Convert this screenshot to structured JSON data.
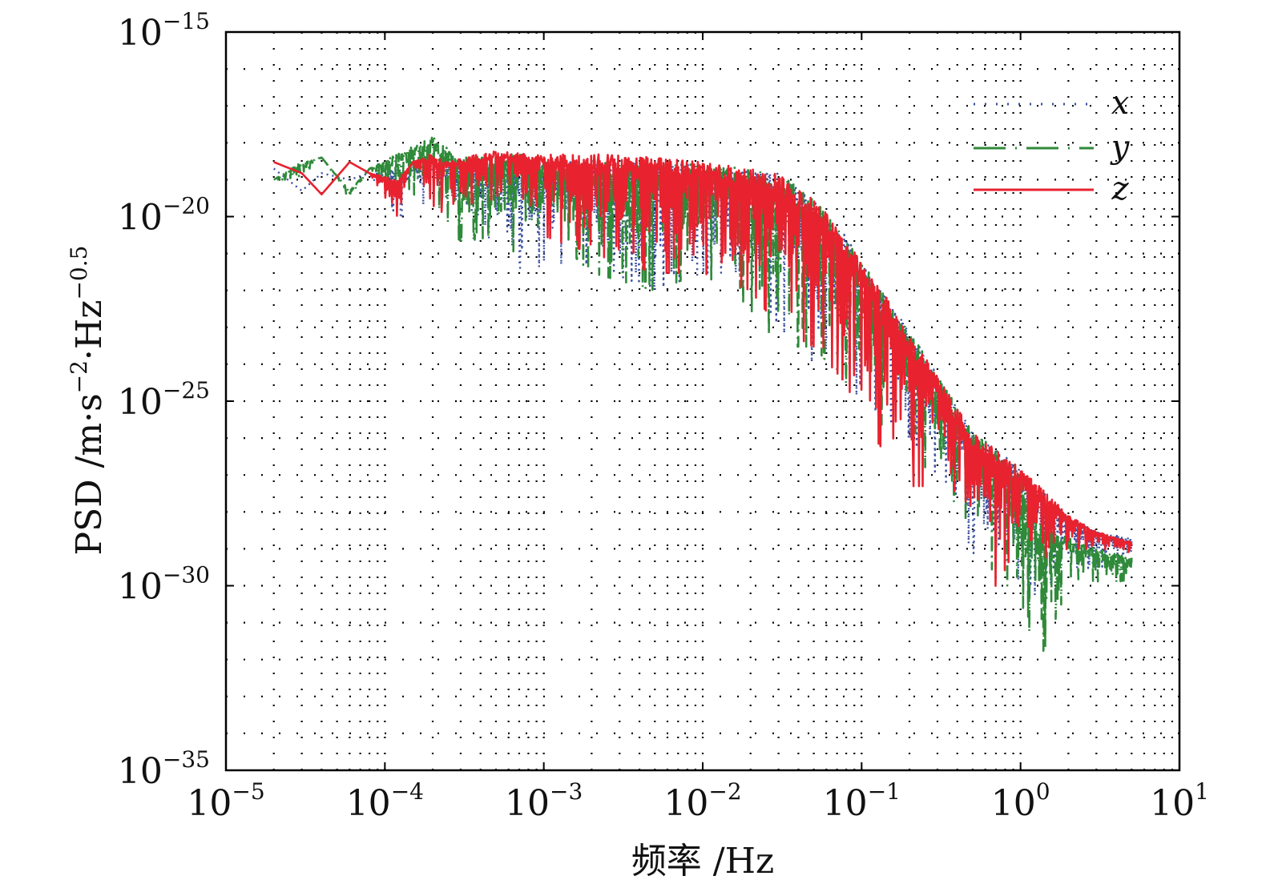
{
  "chart_data": {
    "type": "line",
    "title": "",
    "xlabel": "频率 /Hz",
    "ylabel": {
      "base": "PSD /m·s",
      "exp1": "−2",
      "mid": "·Hz",
      "exp2": "−0.5"
    },
    "x_scale": "log",
    "y_scale": "log",
    "xlim": [
      1e-05,
      10
    ],
    "ylim": [
      1e-35,
      1e-15
    ],
    "x_ticks": [
      {
        "value": 1e-05,
        "base": "10",
        "exp": "−5"
      },
      {
        "value": 0.0001,
        "base": "10",
        "exp": "−4"
      },
      {
        "value": 0.001,
        "base": "10",
        "exp": "−3"
      },
      {
        "value": 0.01,
        "base": "10",
        "exp": "−2"
      },
      {
        "value": 0.1,
        "base": "10",
        "exp": "−1"
      },
      {
        "value": 1,
        "base": "10",
        "exp": "0"
      },
      {
        "value": 10,
        "base": "10",
        "exp": "1"
      }
    ],
    "y_ticks": [
      {
        "value": 1e-15,
        "base": "10",
        "exp": "−15"
      },
      {
        "value": 1e-20,
        "base": "10",
        "exp": "−20"
      },
      {
        "value": 1e-25,
        "base": "10",
        "exp": "−25"
      },
      {
        "value": 1e-30,
        "base": "10",
        "exp": "−30"
      },
      {
        "value": 1e-35,
        "base": "10",
        "exp": "−35"
      }
    ],
    "grid": true,
    "legend_position": "top-right",
    "series": [
      {
        "name": "x",
        "style": "dotted",
        "color": "#3a4fa0",
        "x": [
          2e-05,
          3e-05,
          4e-05,
          6e-05,
          8e-05,
          0.00012,
          0.0002,
          0.0003,
          0.0005,
          0.0008,
          0.001,
          0.002,
          0.005,
          0.01,
          0.02,
          0.03,
          0.05,
          0.08,
          0.1,
          0.2,
          0.3,
          0.5,
          1,
          1.5,
          2,
          3,
          5
        ],
        "upper": [
          2e-19,
          5e-20,
          1.5e-19,
          1e-19,
          1.5e-19,
          2e-19,
          3e-19,
          2e-19,
          3e-19,
          3e-19,
          3e-19,
          3e-19,
          3e-19,
          2.5e-19,
          2e-19,
          1.5e-19,
          3e-20,
          3e-21,
          6e-22,
          8e-24,
          5e-25,
          1.5e-26,
          1.5e-27,
          3e-28,
          8e-29,
          3e-29,
          2e-29
        ],
        "lower": [
          2e-19,
          5e-20,
          1.5e-19,
          1e-19,
          1.5e-19,
          8e-21,
          3e-20,
          5e-21,
          1e-21,
          3e-22,
          5e-22,
          5e-22,
          1e-22,
          3e-22,
          3e-22,
          1e-23,
          1e-24,
          3e-25,
          1e-25,
          1e-26,
          1e-27,
          8e-30,
          3e-31,
          1e-30,
          3e-30,
          3e-30,
          5e-30
        ]
      },
      {
        "name": "y",
        "style": "dash-dot",
        "color": "#2f8a3a",
        "x": [
          2e-05,
          3e-05,
          4e-05,
          6e-05,
          8e-05,
          0.00012,
          0.0002,
          0.0003,
          0.0005,
          0.0008,
          0.001,
          0.002,
          0.005,
          0.01,
          0.02,
          0.03,
          0.05,
          0.08,
          0.1,
          0.2,
          0.3,
          0.5,
          1,
          1.3,
          2,
          3,
          5
        ],
        "upper": [
          1e-19,
          3e-19,
          4e-19,
          5e-20,
          2e-19,
          5e-19,
          1.5e-18,
          4e-19,
          5e-19,
          5e-19,
          3e-19,
          3e-19,
          3e-19,
          2.5e-19,
          2e-19,
          1.5e-19,
          3e-20,
          3e-21,
          6e-22,
          8e-24,
          5e-25,
          1.5e-26,
          1.5e-27,
          5e-29,
          2e-29,
          1e-29,
          6e-30
        ],
        "lower": [
          1e-19,
          1e-19,
          4e-19,
          3e-20,
          2e-19,
          5e-20,
          3e-20,
          2e-21,
          3e-21,
          5e-22,
          5e-21,
          3e-22,
          1e-22,
          3e-22,
          3e-23,
          3e-24,
          3e-24,
          3e-25,
          1e-25,
          3e-27,
          1e-27,
          3e-29,
          8e-32,
          8e-33,
          1e-30,
          1e-30,
          1.5e-30
        ]
      },
      {
        "name": "z",
        "style": "solid",
        "color": "#e8222f",
        "x": [
          2e-05,
          3e-05,
          4e-05,
          6e-05,
          8e-05,
          0.00012,
          0.00015,
          0.0002,
          0.00025,
          0.0003,
          0.0005,
          0.0008,
          0.001,
          0.002,
          0.005,
          0.01,
          0.02,
          0.03,
          0.05,
          0.08,
          0.1,
          0.2,
          0.3,
          0.5,
          1,
          1.5,
          2,
          3,
          5
        ],
        "upper": [
          3e-19,
          1.5e-19,
          4e-20,
          3e-19,
          1.5e-19,
          1e-19,
          3e-19,
          5e-19,
          3e-19,
          4e-19,
          6e-19,
          5e-19,
          5e-19,
          5e-19,
          4e-19,
          3e-19,
          2e-19,
          1.5e-19,
          3e-20,
          3e-21,
          6e-22,
          8e-24,
          5e-25,
          1.5e-26,
          1.5e-27,
          3e-28,
          8e-29,
          3e-29,
          1.5e-29
        ],
        "lower": [
          3e-19,
          1.5e-19,
          4e-20,
          3e-19,
          1.5e-19,
          1e-20,
          3e-19,
          2e-20,
          1e-20,
          2e-20,
          3e-20,
          3e-20,
          3e-21,
          1e-21,
          3e-22,
          3e-22,
          1e-22,
          1e-23,
          3e-24,
          3e-25,
          3e-26,
          5e-28,
          5e-28,
          3e-30,
          3e-31,
          8e-30,
          1e-29,
          1e-29,
          8e-30
        ]
      }
    ]
  }
}
